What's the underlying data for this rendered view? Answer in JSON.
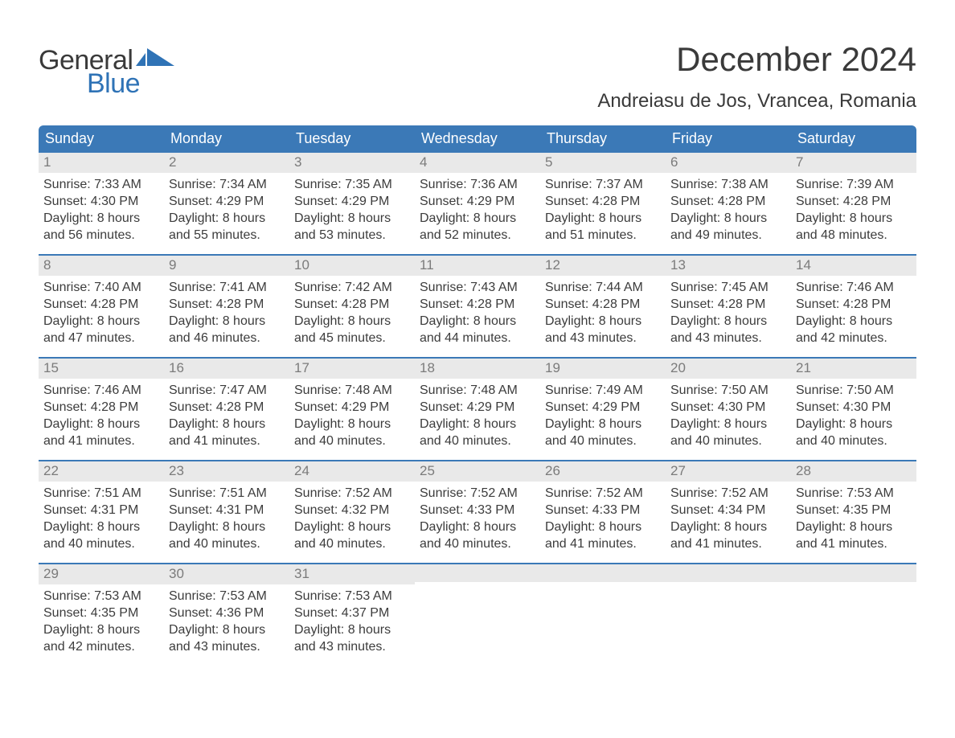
{
  "brand": {
    "wordA": "General",
    "wordB": "Blue"
  },
  "title": "December 2024",
  "location": "Andreiasu de Jos, Vrancea, Romania",
  "colors": {
    "header_bg": "#3b79b7",
    "header_text": "#ffffff",
    "daynum_bg": "#e9e9e9",
    "daynum_text": "#7b7b7b",
    "body_text": "#3c3c3c",
    "rule": "#3b79b7",
    "logo_blue": "#2f73b6",
    "logo_gray": "#3a3a3a",
    "page_bg": "#ffffff"
  },
  "typography": {
    "title_fontsize": 42,
    "location_fontsize": 24,
    "dow_fontsize": 18,
    "daynum_fontsize": 17,
    "body_fontsize": 16,
    "logo_fontsize": 34
  },
  "days_of_week": [
    "Sunday",
    "Monday",
    "Tuesday",
    "Wednesday",
    "Thursday",
    "Friday",
    "Saturday"
  ],
  "labels": {
    "sunrise": "Sunrise:",
    "sunset": "Sunset:",
    "daylight": "Daylight:"
  },
  "weeks": [
    [
      {
        "n": "1",
        "sunrise": "7:33 AM",
        "sunset": "4:30 PM",
        "daylight_h": "8",
        "daylight_m": "56"
      },
      {
        "n": "2",
        "sunrise": "7:34 AM",
        "sunset": "4:29 PM",
        "daylight_h": "8",
        "daylight_m": "55"
      },
      {
        "n": "3",
        "sunrise": "7:35 AM",
        "sunset": "4:29 PM",
        "daylight_h": "8",
        "daylight_m": "53"
      },
      {
        "n": "4",
        "sunrise": "7:36 AM",
        "sunset": "4:29 PM",
        "daylight_h": "8",
        "daylight_m": "52"
      },
      {
        "n": "5",
        "sunrise": "7:37 AM",
        "sunset": "4:28 PM",
        "daylight_h": "8",
        "daylight_m": "51"
      },
      {
        "n": "6",
        "sunrise": "7:38 AM",
        "sunset": "4:28 PM",
        "daylight_h": "8",
        "daylight_m": "49"
      },
      {
        "n": "7",
        "sunrise": "7:39 AM",
        "sunset": "4:28 PM",
        "daylight_h": "8",
        "daylight_m": "48"
      }
    ],
    [
      {
        "n": "8",
        "sunrise": "7:40 AM",
        "sunset": "4:28 PM",
        "daylight_h": "8",
        "daylight_m": "47"
      },
      {
        "n": "9",
        "sunrise": "7:41 AM",
        "sunset": "4:28 PM",
        "daylight_h": "8",
        "daylight_m": "46"
      },
      {
        "n": "10",
        "sunrise": "7:42 AM",
        "sunset": "4:28 PM",
        "daylight_h": "8",
        "daylight_m": "45"
      },
      {
        "n": "11",
        "sunrise": "7:43 AM",
        "sunset": "4:28 PM",
        "daylight_h": "8",
        "daylight_m": "44"
      },
      {
        "n": "12",
        "sunrise": "7:44 AM",
        "sunset": "4:28 PM",
        "daylight_h": "8",
        "daylight_m": "43"
      },
      {
        "n": "13",
        "sunrise": "7:45 AM",
        "sunset": "4:28 PM",
        "daylight_h": "8",
        "daylight_m": "43"
      },
      {
        "n": "14",
        "sunrise": "7:46 AM",
        "sunset": "4:28 PM",
        "daylight_h": "8",
        "daylight_m": "42"
      }
    ],
    [
      {
        "n": "15",
        "sunrise": "7:46 AM",
        "sunset": "4:28 PM",
        "daylight_h": "8",
        "daylight_m": "41"
      },
      {
        "n": "16",
        "sunrise": "7:47 AM",
        "sunset": "4:28 PM",
        "daylight_h": "8",
        "daylight_m": "41"
      },
      {
        "n": "17",
        "sunrise": "7:48 AM",
        "sunset": "4:29 PM",
        "daylight_h": "8",
        "daylight_m": "40"
      },
      {
        "n": "18",
        "sunrise": "7:48 AM",
        "sunset": "4:29 PM",
        "daylight_h": "8",
        "daylight_m": "40"
      },
      {
        "n": "19",
        "sunrise": "7:49 AM",
        "sunset": "4:29 PM",
        "daylight_h": "8",
        "daylight_m": "40"
      },
      {
        "n": "20",
        "sunrise": "7:50 AM",
        "sunset": "4:30 PM",
        "daylight_h": "8",
        "daylight_m": "40"
      },
      {
        "n": "21",
        "sunrise": "7:50 AM",
        "sunset": "4:30 PM",
        "daylight_h": "8",
        "daylight_m": "40"
      }
    ],
    [
      {
        "n": "22",
        "sunrise": "7:51 AM",
        "sunset": "4:31 PM",
        "daylight_h": "8",
        "daylight_m": "40"
      },
      {
        "n": "23",
        "sunrise": "7:51 AM",
        "sunset": "4:31 PM",
        "daylight_h": "8",
        "daylight_m": "40"
      },
      {
        "n": "24",
        "sunrise": "7:52 AM",
        "sunset": "4:32 PM",
        "daylight_h": "8",
        "daylight_m": "40"
      },
      {
        "n": "25",
        "sunrise": "7:52 AM",
        "sunset": "4:33 PM",
        "daylight_h": "8",
        "daylight_m": "40"
      },
      {
        "n": "26",
        "sunrise": "7:52 AM",
        "sunset": "4:33 PM",
        "daylight_h": "8",
        "daylight_m": "41"
      },
      {
        "n": "27",
        "sunrise": "7:52 AM",
        "sunset": "4:34 PM",
        "daylight_h": "8",
        "daylight_m": "41"
      },
      {
        "n": "28",
        "sunrise": "7:53 AM",
        "sunset": "4:35 PM",
        "daylight_h": "8",
        "daylight_m": "41"
      }
    ],
    [
      {
        "n": "29",
        "sunrise": "7:53 AM",
        "sunset": "4:35 PM",
        "daylight_h": "8",
        "daylight_m": "42"
      },
      {
        "n": "30",
        "sunrise": "7:53 AM",
        "sunset": "4:36 PM",
        "daylight_h": "8",
        "daylight_m": "43"
      },
      {
        "n": "31",
        "sunrise": "7:53 AM",
        "sunset": "4:37 PM",
        "daylight_h": "8",
        "daylight_m": "43"
      },
      null,
      null,
      null,
      null
    ]
  ]
}
